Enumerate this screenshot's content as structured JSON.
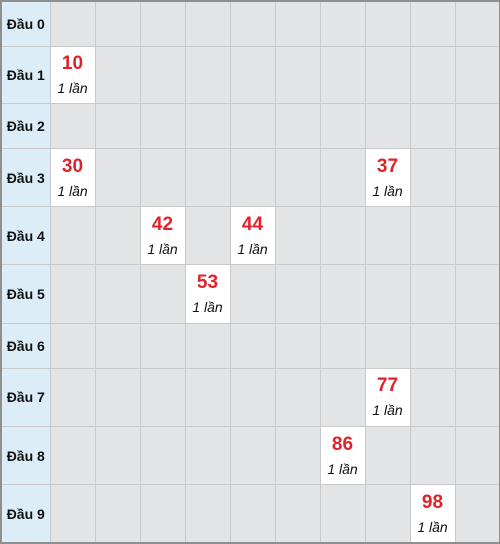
{
  "rows": [
    {
      "label": "Đầu 0",
      "cells": [
        null,
        null,
        null,
        null,
        null,
        null,
        null,
        null,
        null,
        null
      ]
    },
    {
      "label": "Đầu 1",
      "cells": [
        {
          "num": "10",
          "count": "1 lần"
        },
        null,
        null,
        null,
        null,
        null,
        null,
        null,
        null,
        null
      ]
    },
    {
      "label": "Đầu 2",
      "cells": [
        null,
        null,
        null,
        null,
        null,
        null,
        null,
        null,
        null,
        null
      ]
    },
    {
      "label": "Đầu 3",
      "cells": [
        {
          "num": "30",
          "count": "1 lần"
        },
        null,
        null,
        null,
        null,
        null,
        null,
        {
          "num": "37",
          "count": "1 lần"
        },
        null,
        null
      ]
    },
    {
      "label": "Đầu 4",
      "cells": [
        null,
        null,
        {
          "num": "42",
          "count": "1 lần"
        },
        null,
        {
          "num": "44",
          "count": "1 lần"
        },
        null,
        null,
        null,
        null,
        null
      ]
    },
    {
      "label": "Đầu 5",
      "cells": [
        null,
        null,
        null,
        {
          "num": "53",
          "count": "1 lần"
        },
        null,
        null,
        null,
        null,
        null,
        null
      ]
    },
    {
      "label": "Đầu 6",
      "cells": [
        null,
        null,
        null,
        null,
        null,
        null,
        null,
        null,
        null,
        null
      ]
    },
    {
      "label": "Đầu 7",
      "cells": [
        null,
        null,
        null,
        null,
        null,
        null,
        null,
        {
          "num": "77",
          "count": "1 lần"
        },
        null,
        null
      ]
    },
    {
      "label": "Đầu 8",
      "cells": [
        null,
        null,
        null,
        null,
        null,
        null,
        {
          "num": "86",
          "count": "1 lần"
        },
        null,
        null,
        null
      ]
    },
    {
      "label": "Đầu 9",
      "cells": [
        null,
        null,
        null,
        null,
        null,
        null,
        null,
        null,
        {
          "num": "98",
          "count": "1 lần"
        },
        null
      ]
    }
  ]
}
